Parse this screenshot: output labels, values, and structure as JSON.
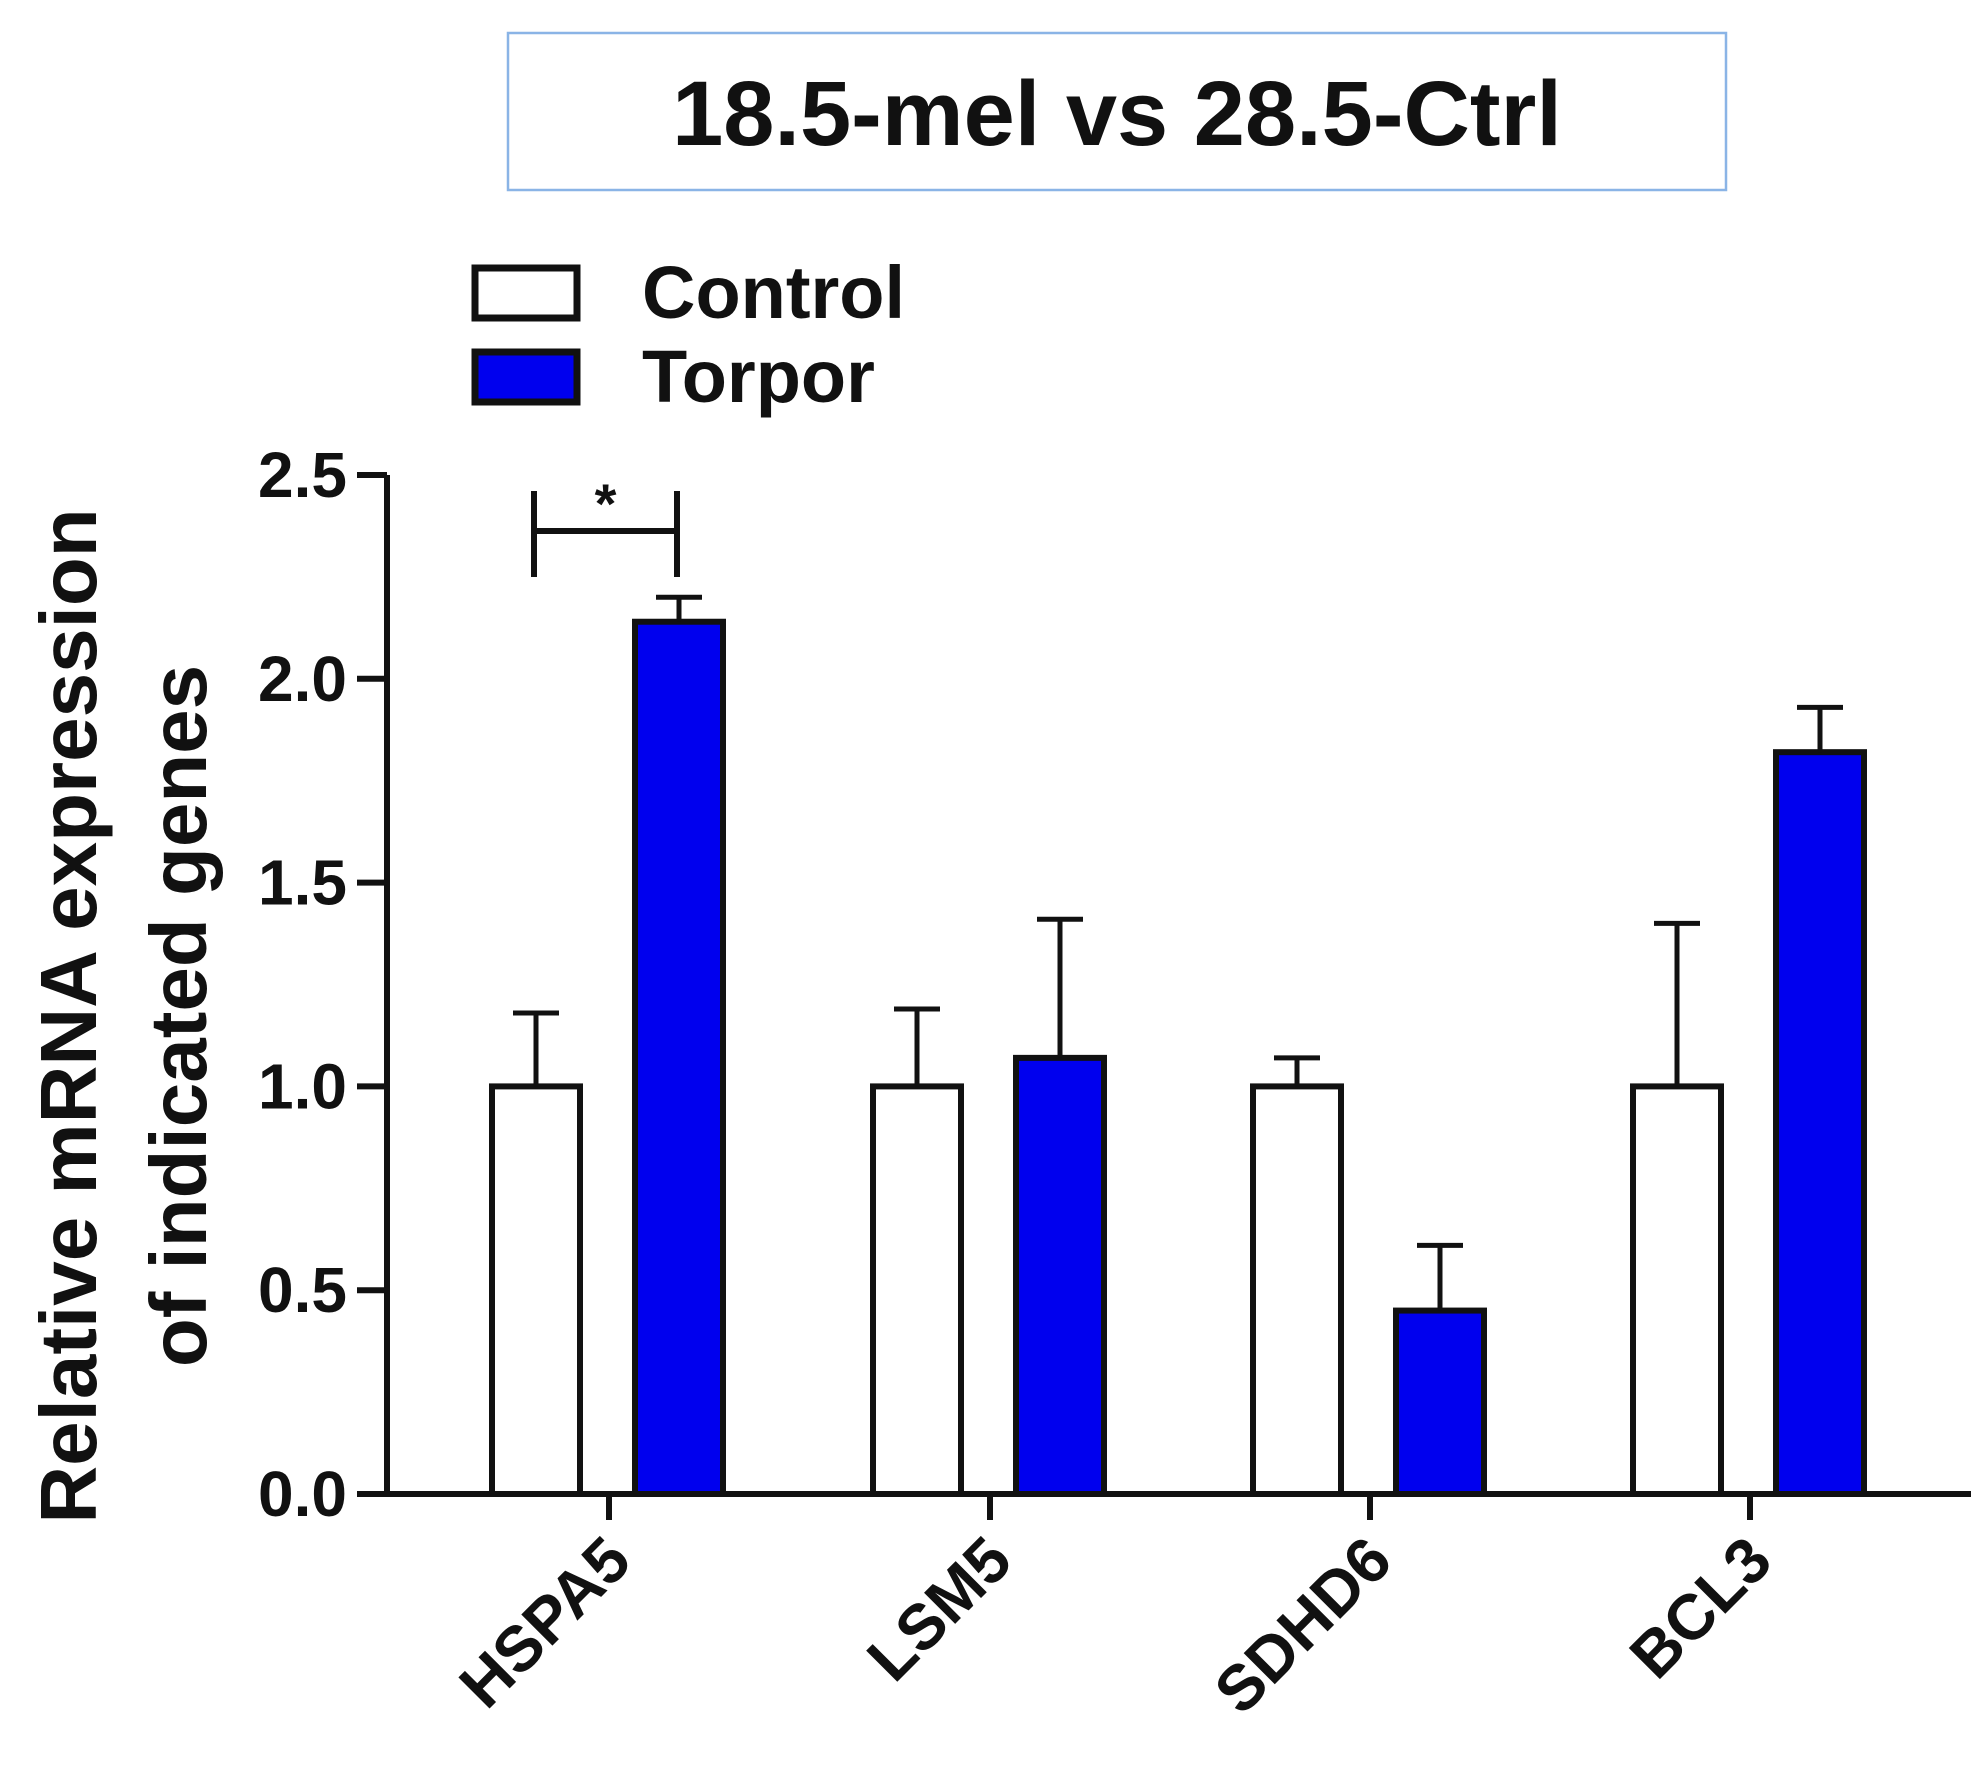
{
  "chart_data": {
    "type": "bar",
    "title": "18.5-mel vs 28.5-Ctrl",
    "ylabel_line1": "Relative mRNA expression",
    "ylabel_line2": "of indicated genes",
    "xlabel": "",
    "categories": [
      "HSPA5",
      "LSM5",
      "SDHD6",
      "BCL3"
    ],
    "series": [
      {
        "name": "Control",
        "color": "#ffffff",
        "values": [
          1.0,
          1.0,
          1.0,
          1.0
        ],
        "errors": [
          0.18,
          0.19,
          0.07,
          0.4
        ]
      },
      {
        "name": "Torpor",
        "color": "#0000ee",
        "values": [
          2.14,
          1.07,
          0.45,
          1.82
        ],
        "errors": [
          0.06,
          0.34,
          0.16,
          0.11
        ]
      }
    ],
    "ylim": [
      0,
      2.5
    ],
    "yticks": [
      "0.0",
      "0.5",
      "1.0",
      "1.5",
      "2.0",
      "2.5"
    ],
    "significance": [
      {
        "category": "HSPA5",
        "label": "*"
      }
    ],
    "legend_position": "top-left",
    "title_border_color": "#8ab4e6"
  }
}
